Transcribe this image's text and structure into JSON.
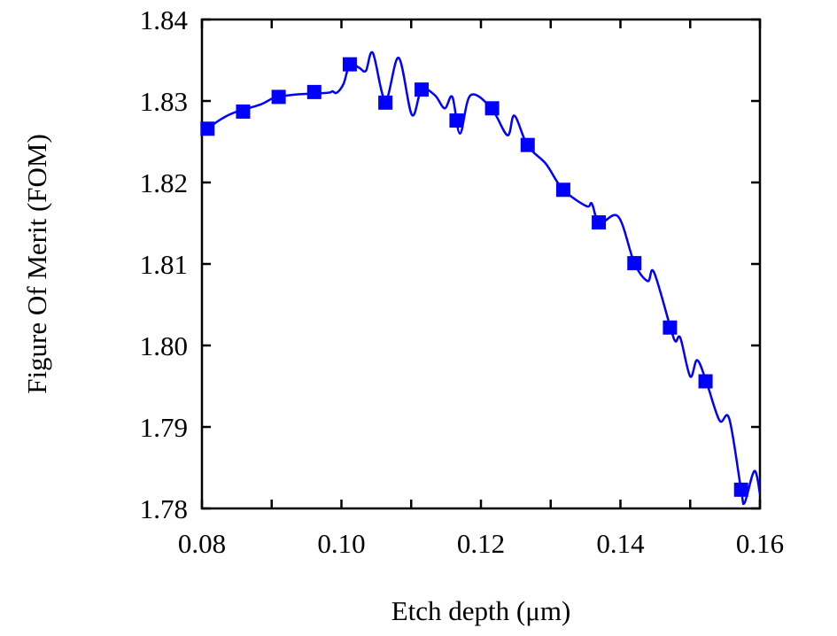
{
  "chart_data": {
    "type": "line",
    "title": "",
    "xlabel": "Etch depth (μm)",
    "ylabel": "Figure Of Merit (FOM)",
    "xlim": [
      0.08,
      0.16
    ],
    "ylim": [
      1.78,
      1.84
    ],
    "x_ticks": [
      "0.08",
      "0.10",
      "0.12",
      "0.14",
      "0.16"
    ],
    "x_tick_values": [
      0.08,
      0.1,
      0.12,
      0.14,
      0.16
    ],
    "x_minor_tick_step": 0.01,
    "y_ticks": [
      "1.78",
      "1.79",
      "1.80",
      "1.81",
      "1.82",
      "1.83",
      "1.84"
    ],
    "y_tick_values": [
      1.78,
      1.79,
      1.8,
      1.81,
      1.82,
      1.83,
      1.84
    ],
    "grid": false,
    "legend": "none",
    "color": "#0000ff",
    "series": [
      {
        "style": "line",
        "x": [
          0.0808,
          0.0828,
          0.0847,
          0.0885,
          0.0904,
          0.0936,
          0.098,
          0.0987,
          0.0993,
          0.1003,
          0.1012,
          0.1025,
          0.1035,
          0.1045,
          0.1063,
          0.1082,
          0.1101,
          0.1115,
          0.1134,
          0.1148,
          0.1159,
          0.117,
          0.1185,
          0.1215,
          0.1238,
          0.1248,
          0.1267,
          0.1293,
          0.1317,
          0.1351,
          0.1359,
          0.137,
          0.1397,
          0.142,
          0.1439,
          0.1448,
          0.1472,
          0.1479,
          0.1486,
          0.15,
          0.151,
          0.1523,
          0.1542,
          0.1556,
          0.1573,
          0.1578,
          0.1592,
          0.16
        ],
        "y": [
          1.8266,
          1.8278,
          1.8286,
          1.8296,
          1.8304,
          1.8308,
          1.831,
          1.8312,
          1.831,
          1.8321,
          1.8345,
          1.8341,
          1.8337,
          1.8359,
          1.8301,
          1.8353,
          1.8283,
          1.8314,
          1.8307,
          1.8291,
          1.8305,
          1.826,
          1.8307,
          1.8291,
          1.8258,
          1.8282,
          1.8245,
          1.8223,
          1.8192,
          1.8171,
          1.8174,
          1.815,
          1.8158,
          1.8101,
          1.8079,
          1.809,
          1.8021,
          1.8005,
          1.8009,
          1.7962,
          1.7982,
          1.7956,
          1.7908,
          1.791,
          1.7823,
          1.7807,
          1.7846,
          1.7818
        ]
      },
      {
        "style": "square-markers",
        "x": [
          0.0808,
          0.0859,
          0.091,
          0.0961,
          0.1012,
          0.1063,
          0.1115,
          0.1165,
          0.1216,
          0.1267,
          0.1318,
          0.1369,
          0.142,
          0.1471,
          0.1522,
          0.1573
        ],
        "y": [
          1.8266,
          1.8287,
          1.8305,
          1.8311,
          1.8345,
          1.8298,
          1.8314,
          1.8276,
          1.8291,
          1.8246,
          1.8191,
          1.8151,
          1.8101,
          1.8022,
          1.7956,
          1.7823
        ]
      }
    ]
  }
}
